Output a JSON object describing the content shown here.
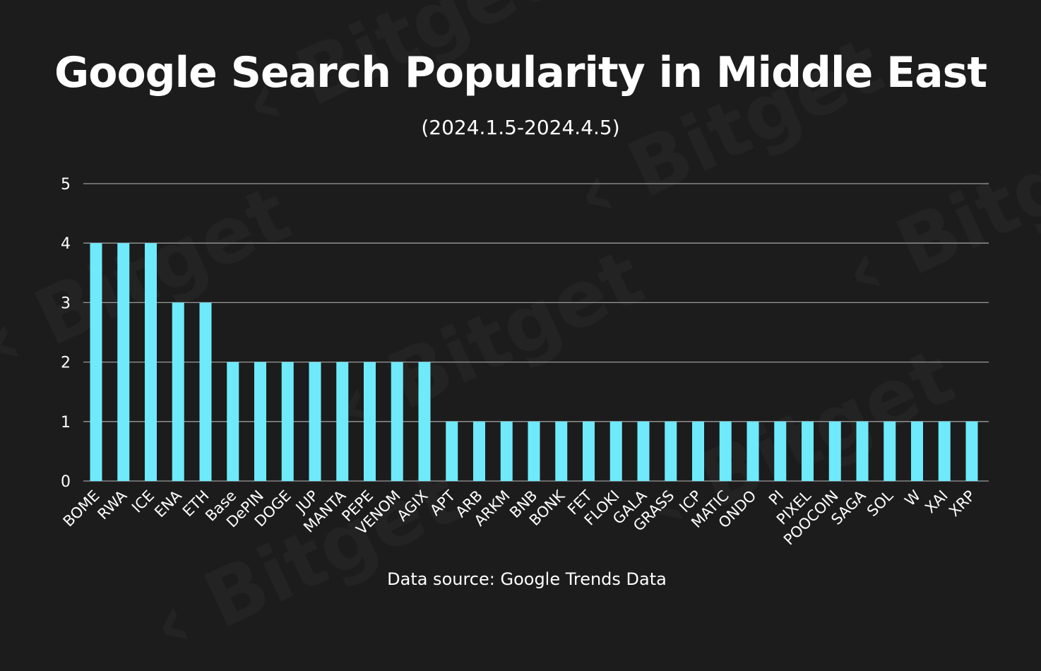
{
  "chart_data": {
    "type": "bar",
    "title": "Google Search Popularity in Middle East",
    "subtitle": "(2024.1.5-2024.4.5)",
    "source": "Data source: Google Trends Data",
    "watermark": "Bitget",
    "xlabel": "",
    "ylabel": "",
    "ylim": [
      0,
      5
    ],
    "yticks": [
      0,
      1,
      2,
      3,
      4,
      5
    ],
    "grid": true,
    "bar_color": "#6eeafa",
    "categories": [
      "BOME",
      "RWA",
      "ICE",
      "ENA",
      "ETH",
      "Base",
      "DePIN",
      "DOGE",
      "JUP",
      "MANTA",
      "PEPE",
      "VENOM",
      "AGIX",
      "APT",
      "ARB",
      "ARKM",
      "BNB",
      "BONK",
      "FET",
      "FLOKI",
      "GALA",
      "GRASS",
      "ICP",
      "MATIC",
      "ONDO",
      "PI",
      "PIXEL",
      "POOCOIN",
      "SAGA",
      "SOL",
      "W",
      "XAI",
      "XRP"
    ],
    "values": [
      4,
      4,
      4,
      3,
      3,
      2,
      2,
      2,
      2,
      2,
      2,
      2,
      2,
      1,
      1,
      1,
      1,
      1,
      1,
      1,
      1,
      1,
      1,
      1,
      1,
      1,
      1,
      1,
      1,
      1,
      1,
      1,
      1
    ]
  }
}
